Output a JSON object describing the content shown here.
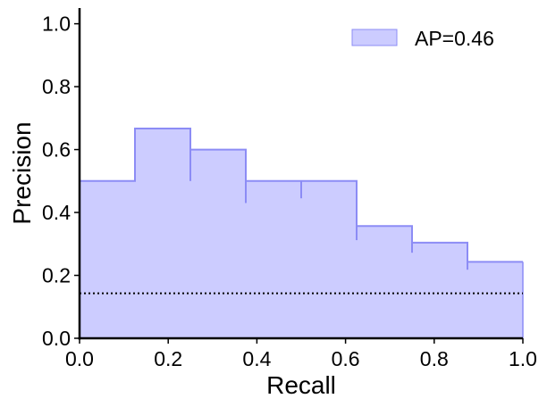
{
  "chart_data": {
    "type": "area",
    "title": "",
    "xlabel": "Recall",
    "ylabel": "Precision",
    "xlim": [
      0.0,
      1.0
    ],
    "ylim": [
      0.0,
      1.05
    ],
    "grid": false,
    "legend_position": "top-right",
    "x_ticks": [
      "0.0",
      "0.2",
      "0.4",
      "0.6",
      "0.8",
      "1.0"
    ],
    "y_ticks": [
      "0.0",
      "0.2",
      "0.4",
      "0.6",
      "0.8",
      "1.0"
    ],
    "series": [
      {
        "name": "AP=0.46",
        "step": "post",
        "x": [
          0.0,
          0.125,
          0.25,
          0.375,
          0.5,
          0.625,
          0.75,
          0.875,
          1.0
        ],
        "y": [
          0.5,
          0.667,
          0.6,
          0.5,
          0.5,
          0.357,
          0.304,
          0.243,
          0.243
        ],
        "fill_color": "#ccccff",
        "line_color": "#8c8cf5"
      }
    ],
    "recall_drops": [
      {
        "x": 0.25,
        "y_low": 0.5,
        "y_high": 0.667
      },
      {
        "x": 0.375,
        "y_low": 0.43,
        "y_high": 0.6
      },
      {
        "x": 0.5,
        "y_low": 0.445,
        "y_high": 0.5
      },
      {
        "x": 0.625,
        "y_low": 0.312,
        "y_high": 0.5
      },
      {
        "x": 0.75,
        "y_low": 0.272,
        "y_high": 0.357
      },
      {
        "x": 0.875,
        "y_low": 0.218,
        "y_high": 0.304
      }
    ],
    "baseline": {
      "y": 0.143,
      "style": "dotted",
      "color": "#000000"
    }
  }
}
